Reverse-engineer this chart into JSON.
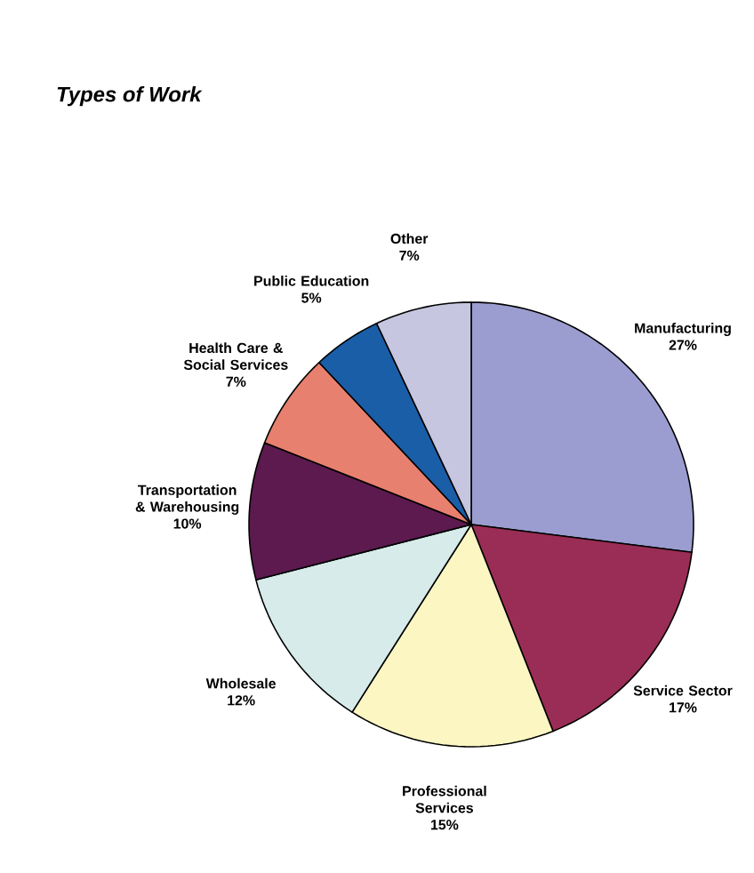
{
  "chart_data": {
    "type": "pie",
    "title": "Types of Work",
    "categories": [
      "Manufacturing",
      "Service Sector",
      "Professional Services",
      "Wholesale",
      "Transportation & Warehousing",
      "Health Care & Social Services",
      "Public Education",
      "Other"
    ],
    "values": [
      27,
      17,
      15,
      12,
      10,
      7,
      5,
      7
    ],
    "value_labels": [
      "27%",
      "17%",
      "15%",
      "12%",
      "10%",
      "7%",
      "5%",
      "7%"
    ],
    "colors": [
      "#9b9dd0",
      "#9a2d55",
      "#fbf6c2",
      "#d6ebea",
      "#5c1a4e",
      "#e8806f",
      "#1a5ea8",
      "#c6c6e0"
    ]
  }
}
